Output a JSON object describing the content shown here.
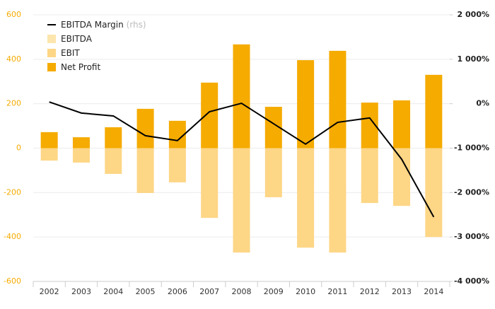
{
  "chart_data": {
    "type": "bar_line",
    "categories": [
      "2002",
      "2003",
      "2004",
      "2005",
      "2006",
      "2007",
      "2008",
      "2009",
      "2010",
      "2011",
      "2012",
      "2013",
      "2014"
    ],
    "series": [
      {
        "name": "EBITDA Margin",
        "axis_note": "(rhs)",
        "type": "line",
        "axis": "y2",
        "color": "#000000",
        "values": [
          40,
          -210,
          -275,
          -720,
          -830,
          -180,
          10,
          -450,
          -910,
          -420,
          -320,
          -1250,
          -2550
        ]
      },
      {
        "name": "EBITDA",
        "type": "bar",
        "color": "#fde6ad",
        "values": [
          null,
          null,
          null,
          null,
          null,
          null,
          null,
          null,
          null,
          null,
          null,
          null,
          null
        ]
      },
      {
        "name": "EBIT",
        "type": "bar",
        "color": "#fdd686",
        "values": [
          -56,
          -65,
          -116,
          -202,
          -154,
          -314,
          -470,
          -221,
          -448,
          -470,
          -247,
          -260,
          -400
        ]
      },
      {
        "name": "Net Profit",
        "type": "bar",
        "color": "#f5ab00",
        "values": [
          72,
          49,
          94,
          177,
          123,
          295,
          467,
          186,
          396,
          438,
          205,
          215,
          330
        ]
      }
    ],
    "ylim": [
      -600,
      600
    ],
    "yticks": [
      -600,
      -400,
      -200,
      0,
      200,
      400,
      600
    ],
    "y2lim": [
      -4000,
      2000
    ],
    "y2ticks": [
      {
        "value": -4000,
        "label": "-4 000%"
      },
      {
        "value": -3000,
        "label": "-3 000%"
      },
      {
        "value": -2000,
        "label": "-2 000%"
      },
      {
        "value": -1000,
        "label": "-1 000%"
      },
      {
        "value": 0,
        "label": "0%"
      },
      {
        "value": 1000,
        "label": "1 000%"
      },
      {
        "value": 2000,
        "label": "2 000%"
      }
    ],
    "grid": true,
    "legend": "top-left",
    "ytick_color": "#f5ab00"
  }
}
